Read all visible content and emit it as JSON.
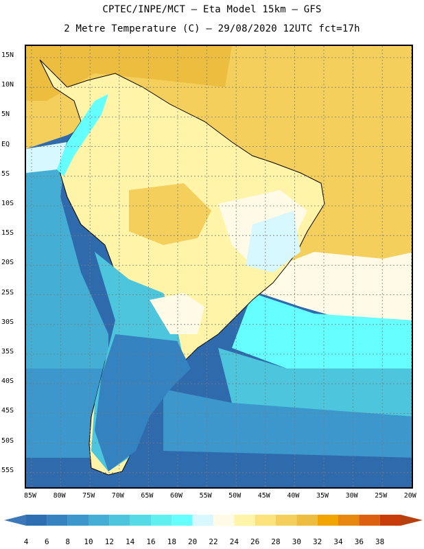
{
  "title_line1": "CPTEC/INPE/MCT –  Eta Model 15km – GFS",
  "title_line2": "2 Metre Temperature (C) – 29/08/2020 12UTC fct=17h",
  "map": {
    "lat_labels": [
      "15N",
      "10N",
      "5N",
      "EQ",
      "5S",
      "10S",
      "15S",
      "20S",
      "25S",
      "30S",
      "35S",
      "40S",
      "45S",
      "50S",
      "55S"
    ],
    "lon_labels": [
      "85W",
      "80W",
      "75W",
      "70W",
      "65W",
      "60W",
      "55W",
      "50W",
      "45W",
      "40W",
      "35W",
      "30W",
      "25W",
      "20W"
    ],
    "grid": true
  },
  "colorbar": {
    "labels": [
      "4",
      "6",
      "8",
      "10",
      "12",
      "14",
      "16",
      "18",
      "20",
      "22",
      "24",
      "26",
      "28",
      "30",
      "32",
      "34",
      "36",
      "38"
    ],
    "colors": [
      "#2e6fb3",
      "#3582c0",
      "#3c97cc",
      "#45aed5",
      "#4cc5dd",
      "#55dbe5",
      "#5ff0ef",
      "#66ffff",
      "#d7f8ff",
      "#fffbe6",
      "#fff4a8",
      "#fbe27a",
      "#f4cf5c",
      "#ecbd3f",
      "#f2a400",
      "#e8870f",
      "#dc6010",
      "#c83c08"
    ],
    "below_color": "#3c78b9",
    "above_color": "#b8400c"
  }
}
